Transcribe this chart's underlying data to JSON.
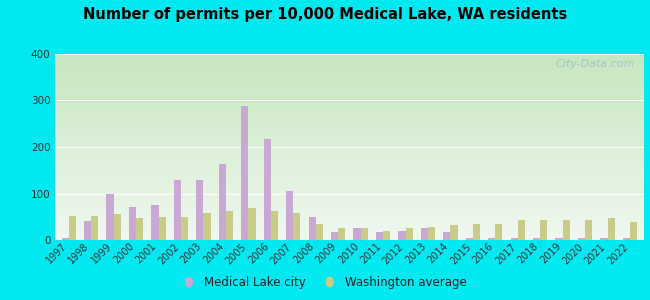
{
  "title": "Number of permits per 10,000 Medical Lake, WA residents",
  "years": [
    1997,
    1998,
    1999,
    2000,
    2001,
    2002,
    2003,
    2004,
    2005,
    2006,
    2007,
    2008,
    2009,
    2010,
    2011,
    2012,
    2013,
    2014,
    2015,
    2016,
    2017,
    2018,
    2019,
    2020,
    2021,
    2022
  ],
  "city_values": [
    5,
    40,
    98,
    70,
    75,
    130,
    130,
    163,
    288,
    218,
    105,
    50,
    18,
    25,
    18,
    20,
    25,
    18,
    5,
    5,
    5,
    5,
    5,
    5,
    5,
    5
  ],
  "wa_values": [
    52,
    52,
    55,
    48,
    50,
    50,
    57,
    62,
    68,
    62,
    57,
    35,
    25,
    25,
    20,
    25,
    27,
    32,
    35,
    35,
    42,
    42,
    42,
    42,
    48,
    38
  ],
  "city_color": "#c9a8d4",
  "wa_color": "#c8cc88",
  "ylim": [
    0,
    400
  ],
  "yticks": [
    0,
    100,
    200,
    300,
    400
  ],
  "outer_color": "#00e8f0",
  "legend_city": "Medical Lake city",
  "legend_wa": "Washington average",
  "watermark": "City-Data.com",
  "bg_gradient_top": "#c8e6c0",
  "bg_gradient_bottom": "#f0f8f0"
}
